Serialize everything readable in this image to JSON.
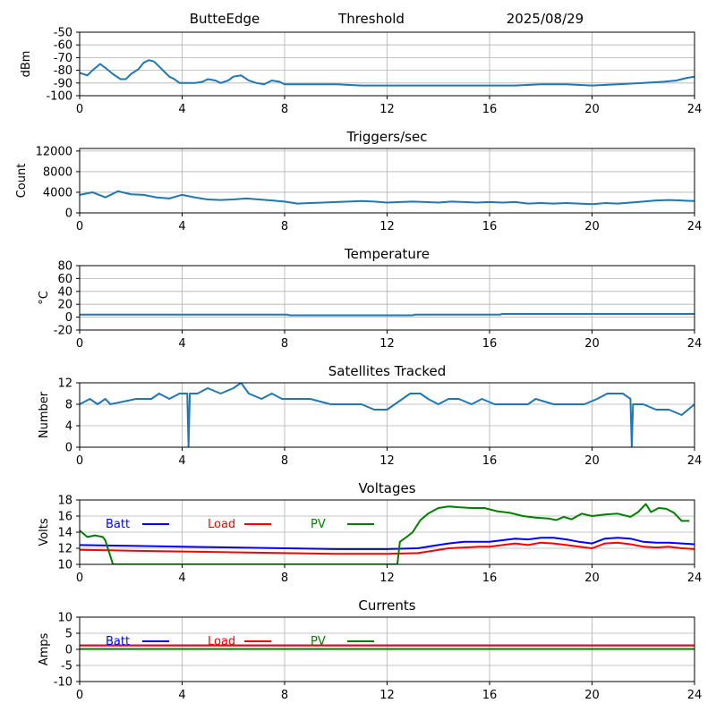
{
  "header": {
    "station": "ButteEdge",
    "mode": "Threshold",
    "date": "2025/08/29"
  },
  "chart_data": [
    {
      "type": "line",
      "title": "",
      "ylabel": "dBm",
      "xlim": [
        0,
        24
      ],
      "ylim": [
        -100,
        -50
      ],
      "xticks": [
        0,
        4,
        8,
        12,
        16,
        20,
        24
      ],
      "yticks": [
        -100,
        -90,
        -80,
        -70,
        -60,
        -50
      ],
      "grid": true,
      "series": [
        {
          "color": "#1f77b4",
          "x": [
            0,
            0.3,
            0.5,
            0.8,
            1.0,
            1.3,
            1.6,
            1.8,
            2.0,
            2.3,
            2.5,
            2.7,
            2.9,
            3.1,
            3.3,
            3.5,
            3.7,
            3.9,
            4.2,
            4.5,
            4.8,
            5.0,
            5.3,
            5.5,
            5.8,
            6.0,
            6.3,
            6.6,
            6.9,
            7.2,
            7.5,
            7.8,
            8.0,
            9,
            10,
            11,
            12,
            13,
            14,
            15,
            16,
            17,
            18,
            19,
            20,
            21,
            22,
            22.8,
            23.3,
            23.7,
            24
          ],
          "y": [
            -82,
            -84,
            -80,
            -75,
            -78,
            -83,
            -87,
            -87,
            -83,
            -79,
            -74,
            -72,
            -73,
            -77,
            -81,
            -85,
            -87,
            -90,
            -90,
            -90,
            -89,
            -87,
            -88,
            -90,
            -88,
            -85,
            -84,
            -88,
            -90,
            -91,
            -88,
            -89,
            -91,
            -91,
            -91,
            -92,
            -92,
            -92,
            -92,
            -92,
            -92,
            -92,
            -91,
            -91,
            -92,
            -91,
            -90,
            -89,
            -88,
            -86,
            -85
          ]
        }
      ]
    },
    {
      "type": "line",
      "title": "Triggers/sec",
      "ylabel": "Count",
      "xlim": [
        0,
        24
      ],
      "ylim": [
        0,
        12500
      ],
      "xticks": [
        0,
        4,
        8,
        12,
        16,
        20,
        24
      ],
      "yticks": [
        0,
        4000,
        8000,
        12000
      ],
      "grid": true,
      "series": [
        {
          "color": "#1f77b4",
          "x": [
            0,
            0.5,
            1,
            1.5,
            2,
            2.5,
            3,
            3.5,
            4,
            4.5,
            5,
            5.5,
            6,
            6.5,
            7,
            7.5,
            8,
            8.5,
            9,
            9.5,
            10,
            10.5,
            11,
            11.5,
            12,
            12.5,
            13,
            13.5,
            14,
            14.5,
            15,
            15.5,
            16,
            16.5,
            17,
            17.5,
            18,
            18.5,
            19,
            19.5,
            20,
            20.5,
            21,
            21.5,
            22,
            22.5,
            23,
            23.5,
            24
          ],
          "y": [
            3500,
            4000,
            3000,
            4200,
            3600,
            3500,
            3000,
            2800,
            3500,
            3000,
            2600,
            2500,
            2600,
            2800,
            2600,
            2400,
            2200,
            1800,
            1900,
            2000,
            2100,
            2200,
            2300,
            2200,
            2000,
            2100,
            2200,
            2100,
            2000,
            2200,
            2100,
            2000,
            2100,
            2000,
            2100,
            1800,
            1900,
            1800,
            1900,
            1800,
            1700,
            1900,
            1800,
            2000,
            2200,
            2400,
            2500,
            2400,
            2300
          ]
        }
      ]
    },
    {
      "type": "line",
      "title": "Temperature",
      "ylabel": "°C",
      "xlim": [
        0,
        24
      ],
      "ylim": [
        -20,
        80
      ],
      "xticks": [
        0,
        4,
        8,
        12,
        16,
        20,
        24
      ],
      "yticks": [
        -20,
        0,
        20,
        40,
        60,
        80
      ],
      "grid": true,
      "series": [
        {
          "color": "#1f77b4",
          "x": [
            0,
            8.1,
            8.2,
            13.0,
            13.1,
            16.4,
            16.5,
            24
          ],
          "y": [
            4,
            4,
            3,
            3,
            4,
            4,
            5,
            5
          ]
        }
      ]
    },
    {
      "type": "line",
      "title": "Satellites Tracked",
      "ylabel": "Number",
      "xlim": [
        0,
        24
      ],
      "ylim": [
        0,
        12
      ],
      "xticks": [
        0,
        4,
        8,
        12,
        16,
        20,
        24
      ],
      "yticks": [
        0,
        4,
        8,
        12
      ],
      "grid": true,
      "series": [
        {
          "color": "#1f77b4",
          "x": [
            0,
            0.4,
            0.7,
            1.0,
            1.2,
            2.2,
            2.8,
            3.1,
            3.5,
            3.9,
            4.2,
            4.25,
            4.3,
            4.6,
            5.0,
            5.5,
            6.0,
            6.3,
            6.6,
            7.1,
            7.5,
            7.9,
            8.3,
            9.0,
            9.8,
            10.5,
            11.0,
            11.5,
            12.0,
            12.3,
            12.6,
            12.9,
            13.3,
            13.6,
            14.0,
            14.4,
            14.8,
            15.3,
            15.7,
            16.2,
            16.8,
            17.5,
            17.8,
            18.5,
            19.2,
            19.7,
            20.2,
            20.6,
            21.2,
            21.5,
            21.55,
            21.6,
            22.0,
            22.5,
            23.0,
            23.5,
            24
          ],
          "y": [
            8,
            9,
            8,
            9,
            8,
            9,
            9,
            10,
            9,
            10,
            10,
            0,
            10,
            10,
            11,
            10,
            11,
            12,
            10,
            9,
            10,
            9,
            9,
            9,
            8,
            8,
            8,
            7,
            7,
            8,
            9,
            10,
            10,
            9,
            8,
            9,
            9,
            8,
            9,
            8,
            8,
            8,
            9,
            8,
            8,
            8,
            9,
            10,
            10,
            9,
            0,
            8,
            8,
            7,
            7,
            6,
            8
          ]
        }
      ]
    },
    {
      "type": "line",
      "title": "Voltages",
      "ylabel": "Volts",
      "xlim": [
        0,
        24
      ],
      "ylim": [
        10,
        18
      ],
      "xticks": [
        0,
        4,
        8,
        12,
        16,
        20,
        24
      ],
      "yticks": [
        10,
        12,
        14,
        16,
        18
      ],
      "grid": true,
      "legend": "top-left",
      "series": [
        {
          "name": "Batt",
          "color": "#0000ff",
          "x": [
            0,
            2,
            4,
            6,
            8,
            10,
            12,
            13.2,
            13.8,
            14.4,
            15.0,
            15.6,
            16.0,
            16.5,
            17.0,
            17.5,
            18.0,
            18.5,
            19.0,
            19.5,
            20.0,
            20.5,
            21.0,
            21.5,
            22.0,
            22.5,
            23.0,
            23.5,
            24
          ],
          "y": [
            12.4,
            12.3,
            12.2,
            12.1,
            12.0,
            11.9,
            11.9,
            12.0,
            12.3,
            12.6,
            12.8,
            12.8,
            12.8,
            13.0,
            13.2,
            13.1,
            13.3,
            13.3,
            13.1,
            12.8,
            12.6,
            13.2,
            13.3,
            13.2,
            12.8,
            12.7,
            12.7,
            12.6,
            12.5
          ]
        },
        {
          "name": "Load",
          "color": "#ff0000",
          "x": [
            0,
            2,
            4,
            6,
            8,
            10,
            12,
            13.2,
            13.8,
            14.4,
            15.0,
            15.6,
            16.0,
            16.5,
            17.0,
            17.5,
            18.0,
            18.5,
            19.0,
            19.5,
            20.0,
            20.5,
            21.0,
            21.5,
            22.0,
            22.5,
            23.0,
            23.5,
            24
          ],
          "y": [
            11.8,
            11.7,
            11.6,
            11.5,
            11.4,
            11.3,
            11.3,
            11.4,
            11.7,
            12.0,
            12.1,
            12.2,
            12.2,
            12.4,
            12.6,
            12.4,
            12.7,
            12.6,
            12.4,
            12.2,
            12.0,
            12.6,
            12.7,
            12.5,
            12.2,
            12.1,
            12.2,
            12.0,
            11.9
          ]
        },
        {
          "name": "PV",
          "color": "#008000",
          "x": [
            0,
            0.3,
            0.6,
            0.9,
            1.0,
            1.1,
            1.2,
            1.3,
            12.4,
            12.5,
            12.8,
            13.0,
            13.3,
            13.6,
            14.0,
            14.4,
            14.8,
            15.3,
            15.8,
            16.3,
            16.8,
            17.3,
            17.8,
            18.3,
            18.6,
            18.9,
            19.2,
            19.6,
            20.0,
            20.5,
            21.0,
            21.5,
            21.8,
            22.1,
            22.3,
            22.6,
            22.9,
            23.2,
            23.5,
            23.8
          ],
          "y": [
            14.2,
            13.4,
            13.6,
            13.4,
            13.0,
            12.0,
            11.0,
            10.0,
            10.0,
            12.8,
            13.5,
            14.0,
            15.5,
            16.3,
            17.0,
            17.2,
            17.1,
            17.0,
            17.0,
            16.6,
            16.4,
            16.0,
            15.8,
            15.7,
            15.5,
            15.9,
            15.6,
            16.3,
            16.0,
            16.2,
            16.3,
            15.9,
            16.5,
            17.5,
            16.5,
            17.0,
            16.9,
            16.4,
            15.4,
            15.4
          ]
        }
      ]
    },
    {
      "type": "line",
      "title": "Currents",
      "ylabel": "Amps",
      "xlim": [
        0,
        24
      ],
      "ylim": [
        -10,
        10
      ],
      "xticks": [
        0,
        4,
        8,
        12,
        16,
        20,
        24
      ],
      "yticks": [
        -10,
        -5,
        0,
        5,
        10
      ],
      "grid": true,
      "legend": "top-left",
      "series": [
        {
          "name": "Batt",
          "color": "#0000ff",
          "x": [
            0,
            24
          ],
          "y": [
            1.2,
            1.2
          ]
        },
        {
          "name": "Load",
          "color": "#ff0000",
          "x": [
            0,
            4,
            8,
            12,
            16,
            20,
            24
          ],
          "y": [
            1.2,
            1.2,
            1.2,
            1.2,
            1.2,
            1.2,
            1.2
          ]
        },
        {
          "name": "PV",
          "color": "#008000",
          "x": [
            0,
            24
          ],
          "y": [
            0.1,
            0.1
          ]
        }
      ]
    }
  ]
}
